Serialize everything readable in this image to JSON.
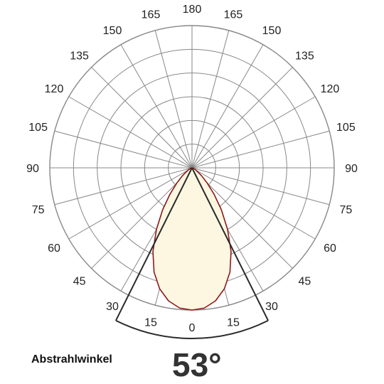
{
  "chart_data": {
    "type": "polar",
    "angle_ticks": [
      {
        "label": "180",
        "angle": 180,
        "side": "center"
      },
      {
        "label": "165",
        "angle": 165,
        "side": "left"
      },
      {
        "label": "165",
        "angle": 165,
        "side": "right"
      },
      {
        "label": "150",
        "angle": 150,
        "side": "left"
      },
      {
        "label": "150",
        "angle": 150,
        "side": "right"
      },
      {
        "label": "135",
        "angle": 135,
        "side": "left"
      },
      {
        "label": "135",
        "angle": 135,
        "side": "right"
      },
      {
        "label": "120",
        "angle": 120,
        "side": "left"
      },
      {
        "label": "120",
        "angle": 120,
        "side": "right"
      },
      {
        "label": "105",
        "angle": 105,
        "side": "left"
      },
      {
        "label": "105",
        "angle": 105,
        "side": "right"
      },
      {
        "label": "90",
        "angle": 90,
        "side": "left"
      },
      {
        "label": "90",
        "angle": 90,
        "side": "right"
      },
      {
        "label": "75",
        "angle": 75,
        "side": "left"
      },
      {
        "label": "75",
        "angle": 75,
        "side": "right"
      },
      {
        "label": "60",
        "angle": 60,
        "side": "left"
      },
      {
        "label": "60",
        "angle": 60,
        "side": "right"
      },
      {
        "label": "45",
        "angle": 45,
        "side": "left"
      },
      {
        "label": "45",
        "angle": 45,
        "side": "right"
      },
      {
        "label": "30",
        "angle": 30,
        "side": "left"
      },
      {
        "label": "30",
        "angle": 30,
        "side": "right"
      },
      {
        "label": "15",
        "angle": 15,
        "side": "left"
      },
      {
        "label": "15",
        "angle": 15,
        "side": "right"
      },
      {
        "label": "0",
        "angle": 0,
        "side": "center"
      }
    ],
    "ring_count": 6,
    "spoke_step_deg": 15,
    "beam_angle_deg": 53,
    "distribution": {
      "angles_deg": [
        0,
        5,
        10,
        15,
        20,
        25,
        30,
        35,
        40,
        45,
        50,
        55,
        60,
        65,
        70,
        75,
        80,
        85,
        90
      ],
      "relative_intensity": [
        1.0,
        0.99,
        0.95,
        0.88,
        0.78,
        0.65,
        0.5,
        0.36,
        0.24,
        0.15,
        0.09,
        0.05,
        0.03,
        0.015,
        0.008,
        0.004,
        0.002,
        0.001,
        0
      ]
    },
    "colors": {
      "fill": "#fdf7e1",
      "outline": "#8b1a1a",
      "grid": "#888888",
      "beam": "#2a2a2a"
    }
  },
  "caption": "Abstrahlwinkel",
  "beam_value": "53°"
}
